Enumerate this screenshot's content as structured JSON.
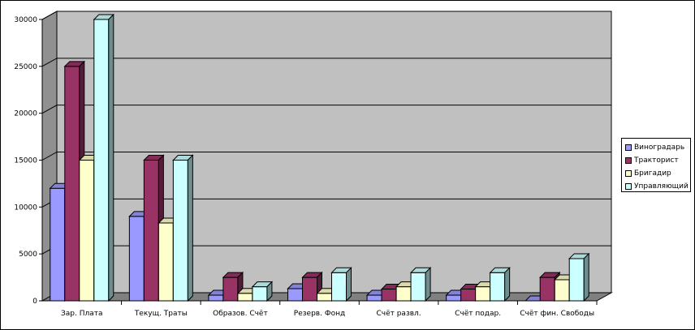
{
  "chart_data": {
    "type": "bar",
    "style": "3d-clustered-column",
    "categories": [
      "Зар. Плата",
      "Текущ. Траты",
      "Образов. Счёт",
      "Резерв. Фонд",
      "Счёт развл.",
      "Счёт подар.",
      "Счёт фин. Свободы"
    ],
    "series": [
      {
        "name": "Виноградарь",
        "color": "#9999ff",
        "values": [
          12000,
          9000,
          600,
          1300,
          600,
          600,
          0
        ]
      },
      {
        "name": "Тракторист",
        "color": "#993366",
        "values": [
          25000,
          15000,
          2500,
          2500,
          1250,
          1250,
          2500
        ]
      },
      {
        "name": "Бригадир",
        "color": "#ffffcc",
        "values": [
          15000,
          8300,
          800,
          800,
          1500,
          1500,
          2250
        ]
      },
      {
        "name": "Управляющий",
        "color": "#ccffff",
        "values": [
          30000,
          15000,
          1500,
          3000,
          3000,
          3000,
          4500
        ]
      }
    ],
    "yticks": [
      "0",
      "5000",
      "10000",
      "15000",
      "20000",
      "25000",
      "30000"
    ],
    "ylim": [
      0,
      30000
    ],
    "title": "",
    "xlabel": "",
    "ylabel": "",
    "grid": true,
    "legend_position": "right",
    "wall_color": "#c0c0c0",
    "floor_color": "#808080"
  }
}
